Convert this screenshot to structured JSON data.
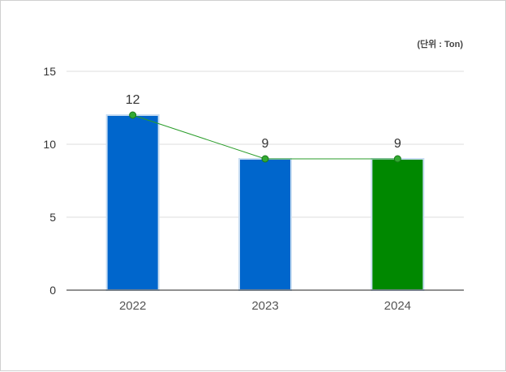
{
  "chart_data": {
    "type": "bar",
    "categories": [
      "2022",
      "2023",
      "2024"
    ],
    "values": [
      12,
      9,
      9
    ],
    "data_labels": [
      "12",
      "9",
      "9"
    ],
    "ylim": [
      0,
      15
    ],
    "yticks": [
      "0",
      "5",
      "10",
      "15"
    ],
    "unit_label": "(단위 : Ton)",
    "grid": true,
    "overlay_line": true,
    "colors": {
      "bar": "#0066cc",
      "bar_highlight": "#008800",
      "bar_border": "#c8ddf2",
      "line": "#2a9d2a",
      "marker_fill": "#33aa33",
      "marker_stroke": "#1a7a1a",
      "grid": "#dddddd",
      "axis": "#222222"
    },
    "highlight_index": 2
  }
}
